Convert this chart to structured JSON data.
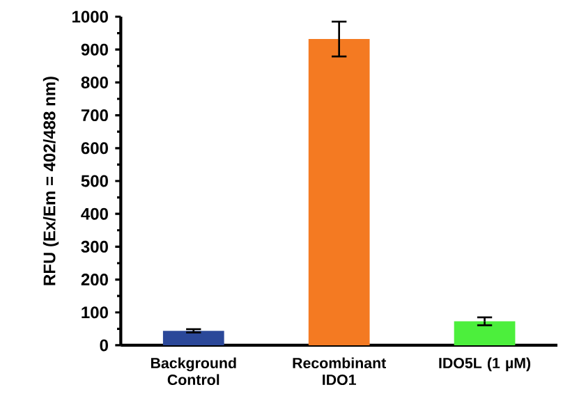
{
  "chart_data": {
    "type": "bar",
    "ylabel": "RFU (Ex/Em = 402/488 nm)",
    "categories": [
      "Background Control",
      "Recombinant IDO1",
      "IDO5L (1 µM)"
    ],
    "values": [
      44,
      932,
      73
    ],
    "errors": [
      5,
      53,
      12
    ],
    "colors": [
      "#2b4899",
      "#f47a22",
      "#4cef3c"
    ],
    "ylim": [
      0,
      1000
    ],
    "yticks": [
      0,
      100,
      200,
      300,
      400,
      500,
      600,
      700,
      800,
      900,
      1000
    ],
    "grid": false
  }
}
